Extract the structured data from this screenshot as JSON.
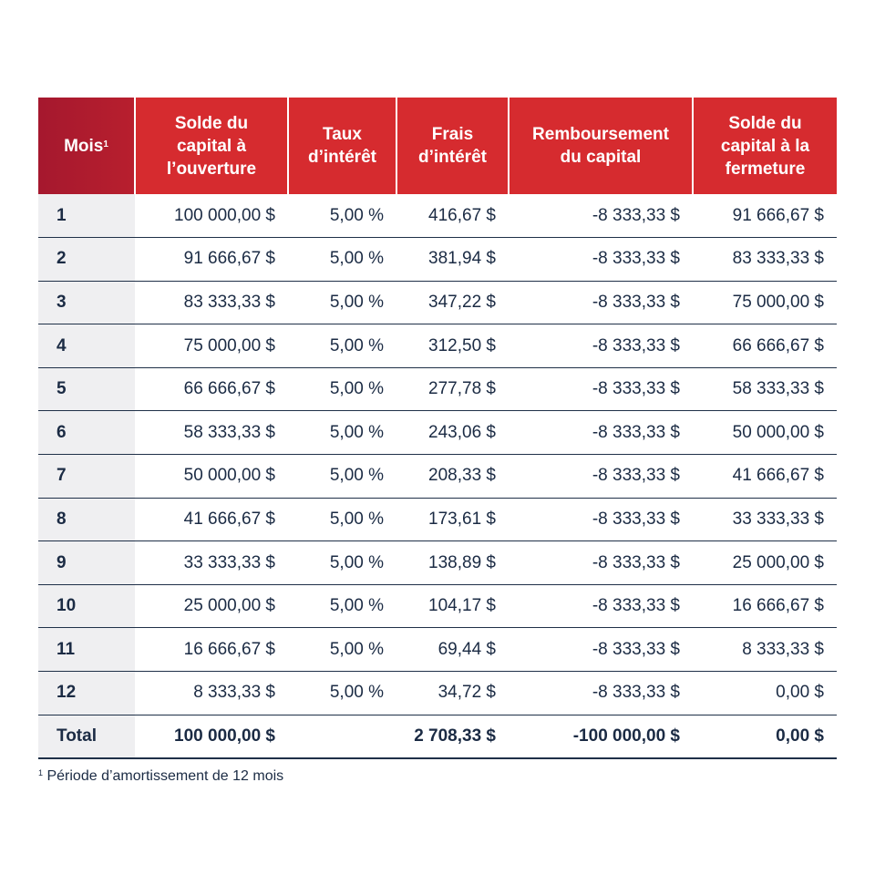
{
  "table": {
    "headers": [
      "Mois",
      "Solde du capital à l’ouverture",
      "Taux d’intérêt",
      "Frais d’intérêt",
      "Remboursement du capital",
      "Solde du capital à la fermeture"
    ],
    "header_note": "1",
    "rows": [
      [
        "1",
        "100 000,00 $",
        "5,00 %",
        "416,67 $",
        "-8 333,33 $",
        "91 666,67 $"
      ],
      [
        "2",
        "91 666,67 $",
        "5,00 %",
        "381,94 $",
        "-8 333,33 $",
        "83 333,33 $"
      ],
      [
        "3",
        "83 333,33 $",
        "5,00 %",
        "347,22 $",
        "-8 333,33 $",
        "75 000,00 $"
      ],
      [
        "4",
        "75 000,00 $",
        "5,00 %",
        "312,50 $",
        "-8 333,33 $",
        "66 666,67 $"
      ],
      [
        "5",
        "66 666,67 $",
        "5,00 %",
        "277,78 $",
        "-8 333,33 $",
        "58 333,33 $"
      ],
      [
        "6",
        "58 333,33 $",
        "5,00 %",
        "243,06 $",
        "-8 333,33 $",
        "50 000,00 $"
      ],
      [
        "7",
        "50 000,00 $",
        "5,00 %",
        "208,33 $",
        "-8 333,33 $",
        "41 666,67 $"
      ],
      [
        "8",
        "41 666,67 $",
        "5,00 %",
        "173,61 $",
        "-8 333,33 $",
        "33 333,33 $"
      ],
      [
        "9",
        "33 333,33 $",
        "5,00 %",
        "138,89 $",
        "-8 333,33 $",
        "25 000,00 $"
      ],
      [
        "10",
        "25 000,00 $",
        "5,00 %",
        "104,17 $",
        "-8 333,33 $",
        "16 666,67 $"
      ],
      [
        "11",
        "16 666,67 $",
        "5,00 %",
        "69,44 $",
        "-8 333,33 $",
        "8 333,33 $"
      ],
      [
        "12",
        "8 333,33 $",
        "5,00 %",
        "34,72 $",
        "-8 333,33 $",
        "0,00 $"
      ]
    ],
    "total": {
      "label": "Total",
      "opening": "100 000,00 $",
      "interest": "2 708,33 $",
      "repayment": "-100 000,00 $",
      "closing": "0,00 $"
    }
  },
  "footnote": {
    "marker": "1",
    "text": "Période d’amortissement de 12 mois"
  }
}
